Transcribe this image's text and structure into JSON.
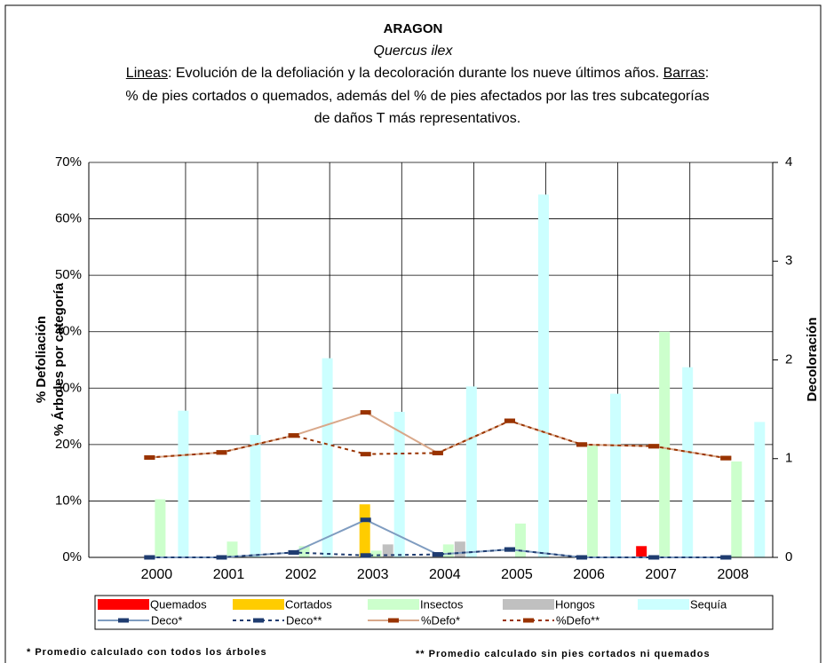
{
  "chart_data": {
    "type": "bar",
    "title": "ARAGON",
    "subtitle": "Quercus ilex",
    "description": [
      {
        "text": "Lineas",
        "underline": true
      },
      {
        "text": ": Evolución de la defoliación y la decoloración durante los nueve últimos años. ",
        "underline": false
      },
      {
        "text": "Barras",
        "underline": true
      },
      {
        "text": ": % de pies cortados o quemados, además del % de pies afectados por las tres subcategorías de daños T más representativos.",
        "underline": false
      }
    ],
    "y_label": [
      "% Defoliación",
      "% Árboles por categoría"
    ],
    "y2_label": "Decoloración",
    "categories": [
      "2000",
      "2001",
      "2002",
      "2003",
      "2004",
      "2005",
      "2006",
      "2007",
      "2008"
    ],
    "ylim": [
      0,
      70
    ],
    "yticks": [
      {
        "value": 0,
        "label": "0%"
      },
      {
        "value": 10,
        "label": "10%"
      },
      {
        "value": 20,
        "label": "20%"
      },
      {
        "value": 30,
        "label": "30%"
      },
      {
        "value": 40,
        "label": "40%"
      },
      {
        "value": 50,
        "label": "50%"
      },
      {
        "value": 60,
        "label": "60%"
      },
      {
        "value": 70,
        "label": "70%"
      }
    ],
    "y2lim": [
      0,
      4
    ],
    "y2ticks": [
      0,
      1,
      2,
      3,
      4
    ],
    "grid": true,
    "series": [
      {
        "name": "Quemados",
        "type": "bar",
        "color": "#ff0000",
        "values": [
          0,
          0,
          0,
          0,
          0,
          0,
          0,
          2,
          0
        ]
      },
      {
        "name": "Cortados",
        "type": "bar",
        "color": "#ffcc00",
        "values": [
          0,
          0,
          0,
          9.4,
          0,
          0,
          0,
          0,
          0
        ]
      },
      {
        "name": "Insectos",
        "type": "bar",
        "color": "#ccffcc",
        "values": [
          10.3,
          2.8,
          2,
          1.2,
          2.3,
          6,
          20,
          40,
          17
        ]
      },
      {
        "name": "Hongos",
        "type": "bar",
        "color": "#c0c0c0",
        "values": [
          0,
          0,
          0,
          2.3,
          2.8,
          0,
          0,
          0,
          0
        ]
      },
      {
        "name": "Sequía",
        "type": "bar",
        "color": "#ccffff",
        "values": [
          26,
          21.7,
          35.3,
          25.8,
          30.3,
          64.3,
          29,
          33.7,
          24
        ]
      },
      {
        "name": "Deco*",
        "type": "line",
        "axis": "y2",
        "color": "#7f9cc0",
        "marker_color": "#1f3c70",
        "dashed": false,
        "values": [
          0,
          0,
          0.05,
          0.38,
          0.03,
          0.08,
          0,
          0,
          0
        ]
      },
      {
        "name": "Deco**",
        "type": "line",
        "axis": "y2",
        "color": "#1f3c70",
        "marker_color": "#1f3c70",
        "dashed": true,
        "values": [
          0,
          0,
          0.05,
          0.02,
          0.03,
          0.08,
          0,
          0,
          0
        ]
      },
      {
        "name": "%Defo*",
        "type": "line",
        "color": "#d9a88a",
        "marker_color": "#993300",
        "dashed": false,
        "values": [
          17.7,
          18.6,
          21.6,
          25.7,
          18.5,
          24.2,
          20,
          19.7,
          17.6
        ]
      },
      {
        "name": "%Defo**",
        "type": "line",
        "color": "#993300",
        "marker_color": "#993300",
        "dashed": true,
        "values": [
          17.7,
          18.6,
          21.6,
          18.3,
          18.5,
          24.2,
          20,
          19.7,
          17.6
        ]
      }
    ],
    "notes": [
      "* Promedio calculado con todos los árboles",
      "** Promedio calculado sin pies cortados ni quemados"
    ]
  }
}
